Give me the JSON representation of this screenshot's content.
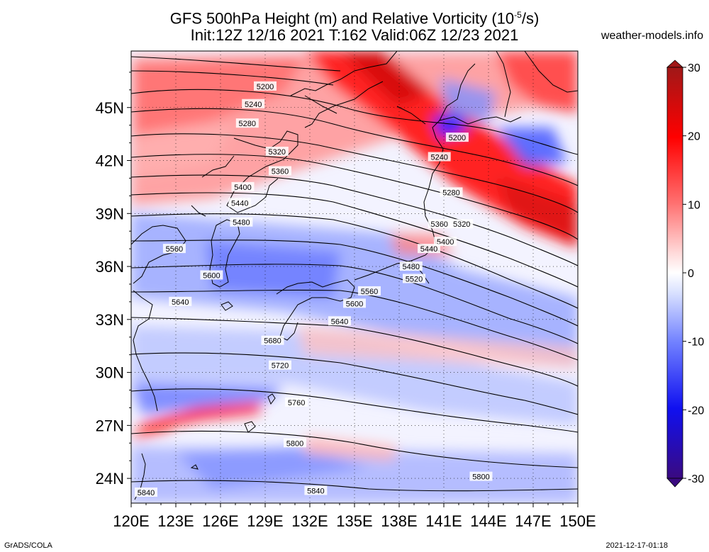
{
  "title_line1": "GFS 500hPa Height (m) and Relative Vorticity (10",
  "title_sup": "-5",
  "title_line1_end": "/s)",
  "title_line2": "Init:12Z 12/16 2021 T:162 Valid:06Z 12/23 2021",
  "site": "weather-models.info",
  "footer_left": "GrADS/COLA",
  "footer_right": "2021-12-17-01:18",
  "map": {
    "lon_range": [
      120,
      150
    ],
    "lat_range": [
      22.6,
      48.2
    ],
    "lon_ticks": [
      "120E",
      "123E",
      "126E",
      "129E",
      "132E",
      "135E",
      "138E",
      "141E",
      "144E",
      "147E",
      "150E"
    ],
    "lat_ticks": [
      {
        "lat": 45,
        "label": "45N"
      },
      {
        "lat": 42,
        "label": "42N"
      },
      {
        "lat": 39,
        "label": "39N"
      },
      {
        "lat": 36,
        "label": "36N"
      },
      {
        "lat": 33,
        "label": "33N"
      },
      {
        "lat": 30,
        "label": "30N"
      },
      {
        "lat": 27,
        "label": "27N"
      },
      {
        "lat": 24,
        "label": "24N"
      }
    ],
    "contour_labels": [
      {
        "text": "5200",
        "lon": 129.0,
        "lat": 46.2
      },
      {
        "text": "5240",
        "lon": 128.2,
        "lat": 45.2
      },
      {
        "text": "5280",
        "lon": 127.8,
        "lat": 44.1
      },
      {
        "text": "5320",
        "lon": 129.8,
        "lat": 42.5
      },
      {
        "text": "5360",
        "lon": 130.0,
        "lat": 41.4
      },
      {
        "text": "5400",
        "lon": 127.5,
        "lat": 40.5
      },
      {
        "text": "5440",
        "lon": 127.3,
        "lat": 39.6
      },
      {
        "text": "5480",
        "lon": 127.4,
        "lat": 38.5
      },
      {
        "text": "5560",
        "lon": 122.9,
        "lat": 37.0
      },
      {
        "text": "5600",
        "lon": 125.4,
        "lat": 35.5
      },
      {
        "text": "5640",
        "lon": 123.3,
        "lat": 34.0
      },
      {
        "text": "5680",
        "lon": 129.5,
        "lat": 31.8
      },
      {
        "text": "5720",
        "lon": 130.0,
        "lat": 30.4
      },
      {
        "text": "5760",
        "lon": 131.1,
        "lat": 28.3
      },
      {
        "text": "5800",
        "lon": 131.0,
        "lat": 26.0
      },
      {
        "text": "5800",
        "lon": 143.5,
        "lat": 24.1
      },
      {
        "text": "5840",
        "lon": 121.0,
        "lat": 23.2
      },
      {
        "text": "5840",
        "lon": 132.4,
        "lat": 23.3
      },
      {
        "text": "5200",
        "lon": 141.9,
        "lat": 43.3
      },
      {
        "text": "5240",
        "lon": 140.7,
        "lat": 42.2
      },
      {
        "text": "5280",
        "lon": 141.5,
        "lat": 40.2
      },
      {
        "text": "5320",
        "lon": 142.2,
        "lat": 38.4
      },
      {
        "text": "5360",
        "lon": 140.7,
        "lat": 38.4
      },
      {
        "text": "5400",
        "lon": 141.1,
        "lat": 37.4
      },
      {
        "text": "5440",
        "lon": 140.0,
        "lat": 37.0
      },
      {
        "text": "5480",
        "lon": 138.8,
        "lat": 36.0
      },
      {
        "text": "5520",
        "lon": 139.0,
        "lat": 35.3
      },
      {
        "text": "5560",
        "lon": 136.0,
        "lat": 34.6
      },
      {
        "text": "5600",
        "lon": 135.0,
        "lat": 33.9
      },
      {
        "text": "5640",
        "lon": 134.0,
        "lat": 32.9
      }
    ]
  },
  "colorbar": {
    "ticks": [
      {
        "value": 30,
        "label": "30"
      },
      {
        "value": 20,
        "label": "20"
      },
      {
        "value": 10,
        "label": "10"
      },
      {
        "value": 0,
        "label": "0"
      },
      {
        "value": -10,
        "label": "-10"
      },
      {
        "value": -20,
        "label": "-20"
      },
      {
        "value": -30,
        "label": "-30"
      }
    ],
    "colors": {
      "max": "#b22222",
      "strong_pos": "#ff1a1a",
      "pos": "#ff8888",
      "weak_pos": "#ffd0d0",
      "zero": "#ffffff",
      "weak_neg": "#d0d8ff",
      "neg": "#7788ff",
      "strong_neg": "#1a1aff",
      "min": "#3a0a8a"
    }
  }
}
